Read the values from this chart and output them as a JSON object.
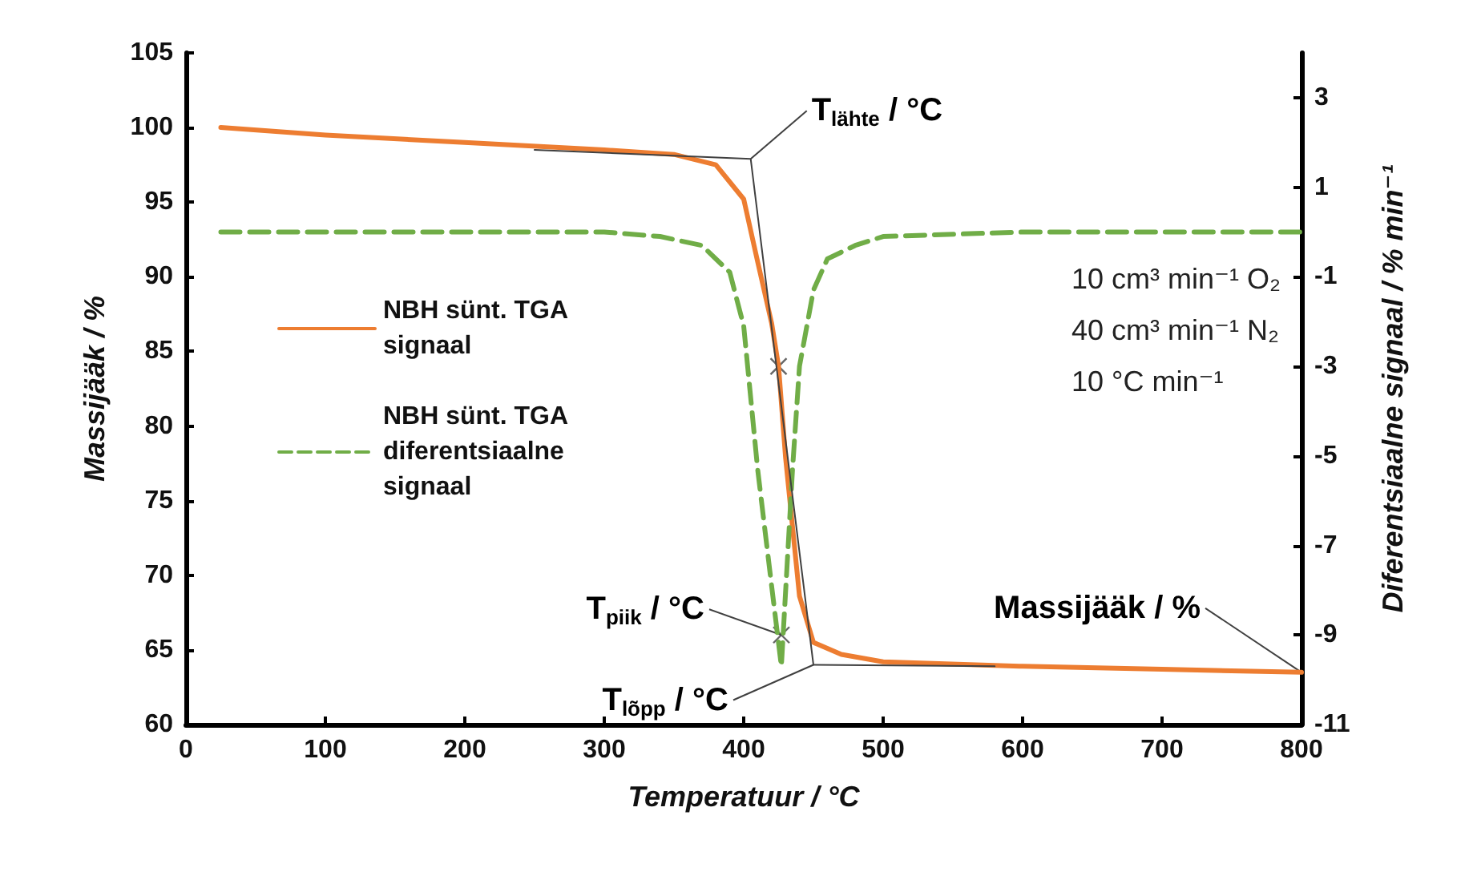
{
  "chart_data": {
    "type": "line",
    "xlabel": "Temperatuur / °C",
    "ylabel": "Massijääk / %",
    "y2label": "Diferentsiaalne signaal / % min⁻¹",
    "xlim": [
      0,
      800
    ],
    "xticks": [
      0,
      100,
      200,
      300,
      400,
      500,
      600,
      700,
      800
    ],
    "ylim": [
      60,
      105
    ],
    "yticks": [
      60,
      65,
      70,
      75,
      80,
      85,
      90,
      95,
      100,
      105
    ],
    "y2lim": [
      -11,
      4
    ],
    "y2ticks": [
      -11,
      -9,
      -7,
      -5,
      -3,
      -1,
      1,
      3
    ],
    "grid": false,
    "legend": "left",
    "series": [
      {
        "name": "NBH sünt. TGA signaal",
        "color": "#ed7d31",
        "line_style": "solid",
        "x": [
          25,
          100,
          200,
          300,
          350,
          380,
          400,
          410,
          420,
          425,
          430,
          440,
          450,
          470,
          500,
          600,
          700,
          800
        ],
        "values": [
          100,
          99.5,
          99,
          98.5,
          98.2,
          97.5,
          95.2,
          91,
          86.9,
          84,
          77.9,
          68.6,
          65.5,
          64.7,
          64.2,
          63.9,
          63.7,
          63.5
        ]
      },
      {
        "name": "NBH sünt. TGA diferentsiaalne signaal",
        "color": "#70ad47",
        "line_style": "dashed",
        "axis": "y2",
        "x": [
          25,
          100,
          200,
          300,
          340,
          370,
          390,
          400,
          410,
          420,
          427,
          435,
          440,
          450,
          460,
          480,
          500,
          600,
          700,
          800
        ],
        "values": [
          0,
          0,
          0,
          0,
          -0.1,
          -0.3,
          -0.9,
          -2.1,
          -5.3,
          -7.9,
          -9.7,
          -5.3,
          -3,
          -1.3,
          -0.6,
          -0.3,
          -0.1,
          0,
          0,
          0
        ]
      },
      {
        "color": "#404040",
        "line_style": "solid",
        "x": [
          250,
          405,
          450,
          580
        ],
        "values": [
          98.5,
          97.9,
          64,
          63.9
        ]
      },
      {
        "type": "scatter",
        "color": "#404040",
        "marker": "cross",
        "x": [
          425,
          427
        ],
        "values": [
          84,
          66
        ]
      }
    ],
    "annotations": [
      {
        "text": "T$_{lähte}$ / °C",
        "x": 405,
        "y": 97.9
      },
      {
        "text": "T$_{piik}$ / °C",
        "x": 427,
        "y": 66
      },
      {
        "text": "T$_{lõpp}$ / °C",
        "x": 450,
        "y": 64
      },
      {
        "text": "Massijääk / %",
        "x": 800,
        "y": 63.5
      },
      "10 cm³ min⁻¹ O₂\n40 cm³ min⁻¹ N₂\n10 °C min⁻¹"
    ]
  }
}
